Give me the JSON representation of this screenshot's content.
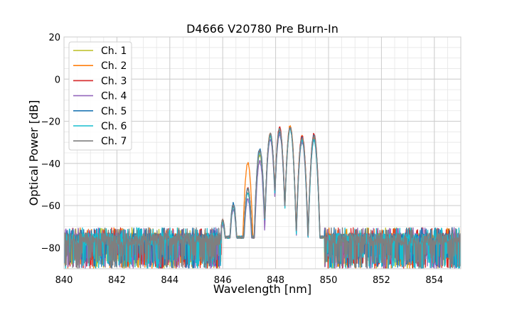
{
  "chart_data": {
    "type": "line",
    "title": "D4666 V20780 Pre Burn-In",
    "xlabel": "Wavelength [nm]",
    "ylabel": "Optical Power [dB]",
    "xlim": [
      840,
      855
    ],
    "ylim": [
      -90,
      20
    ],
    "xticks": [
      840,
      842,
      844,
      846,
      848,
      850,
      852,
      854
    ],
    "yticks": [
      20,
      0,
      -20,
      -40,
      -60,
      -80
    ],
    "xtick_labels": [
      "840",
      "842",
      "844",
      "846",
      "848",
      "850",
      "852",
      "854"
    ],
    "ytick_labels": [
      "20",
      "0",
      "−20",
      "−40",
      "−60",
      "−80"
    ],
    "grid": true,
    "legend_position": "top-left",
    "series": [
      {
        "name": "Ch. 1",
        "color": "#bcbd22"
      },
      {
        "name": "Ch. 2",
        "color": "#ff7f0e"
      },
      {
        "name": "Ch. 3",
        "color": "#d62728"
      },
      {
        "name": "Ch. 4",
        "color": "#9467bd"
      },
      {
        "name": "Ch. 5",
        "color": "#1f77b4"
      },
      {
        "name": "Ch. 6",
        "color": "#17becf"
      },
      {
        "name": "Ch. 7",
        "color": "#7f7f7f"
      }
    ],
    "spectrum_peaks": [
      {
        "x": 846.0,
        "y": -67
      },
      {
        "x": 846.4,
        "y": -60
      },
      {
        "x": 846.95,
        "y": -52
      },
      {
        "x": 847.4,
        "y": -34
      },
      {
        "x": 847.8,
        "y": -26
      },
      {
        "x": 848.15,
        "y": -24
      },
      {
        "x": 848.55,
        "y": -23
      },
      {
        "x": 849.0,
        "y": -28
      },
      {
        "x": 849.45,
        "y": -27
      }
    ],
    "channel_peak_offsets": [
      {
        "name": "Ch. 1",
        "dy": [
          0,
          0,
          0,
          -2,
          -1,
          0,
          0,
          0,
          -1
        ]
      },
      {
        "name": "Ch. 2",
        "dy": [
          0,
          0,
          12,
          0,
          0,
          0,
          1,
          1,
          -1
        ]
      },
      {
        "name": "Ch. 3",
        "dy": [
          0,
          0,
          0,
          0,
          0,
          1,
          0,
          1,
          1
        ]
      },
      {
        "name": "Ch. 4",
        "dy": [
          -2,
          -2,
          -5,
          -5,
          -3,
          -2,
          0,
          -2,
          -2
        ]
      },
      {
        "name": "Ch. 5",
        "dy": [
          0,
          1,
          0,
          1,
          0,
          -1,
          0,
          0,
          0
        ]
      },
      {
        "name": "Ch. 6",
        "dy": [
          -1,
          -1,
          -2,
          -1,
          -1,
          0,
          -1,
          -1,
          -2
        ]
      },
      {
        "name": "Ch. 7",
        "dy": [
          0,
          0,
          0,
          0,
          0,
          0,
          0,
          0,
          0
        ]
      }
    ],
    "noise_floor": {
      "range": [
        -90,
        -72
      ],
      "typical": -76
    },
    "band_edges": [
      846.0,
      849.8
    ]
  }
}
